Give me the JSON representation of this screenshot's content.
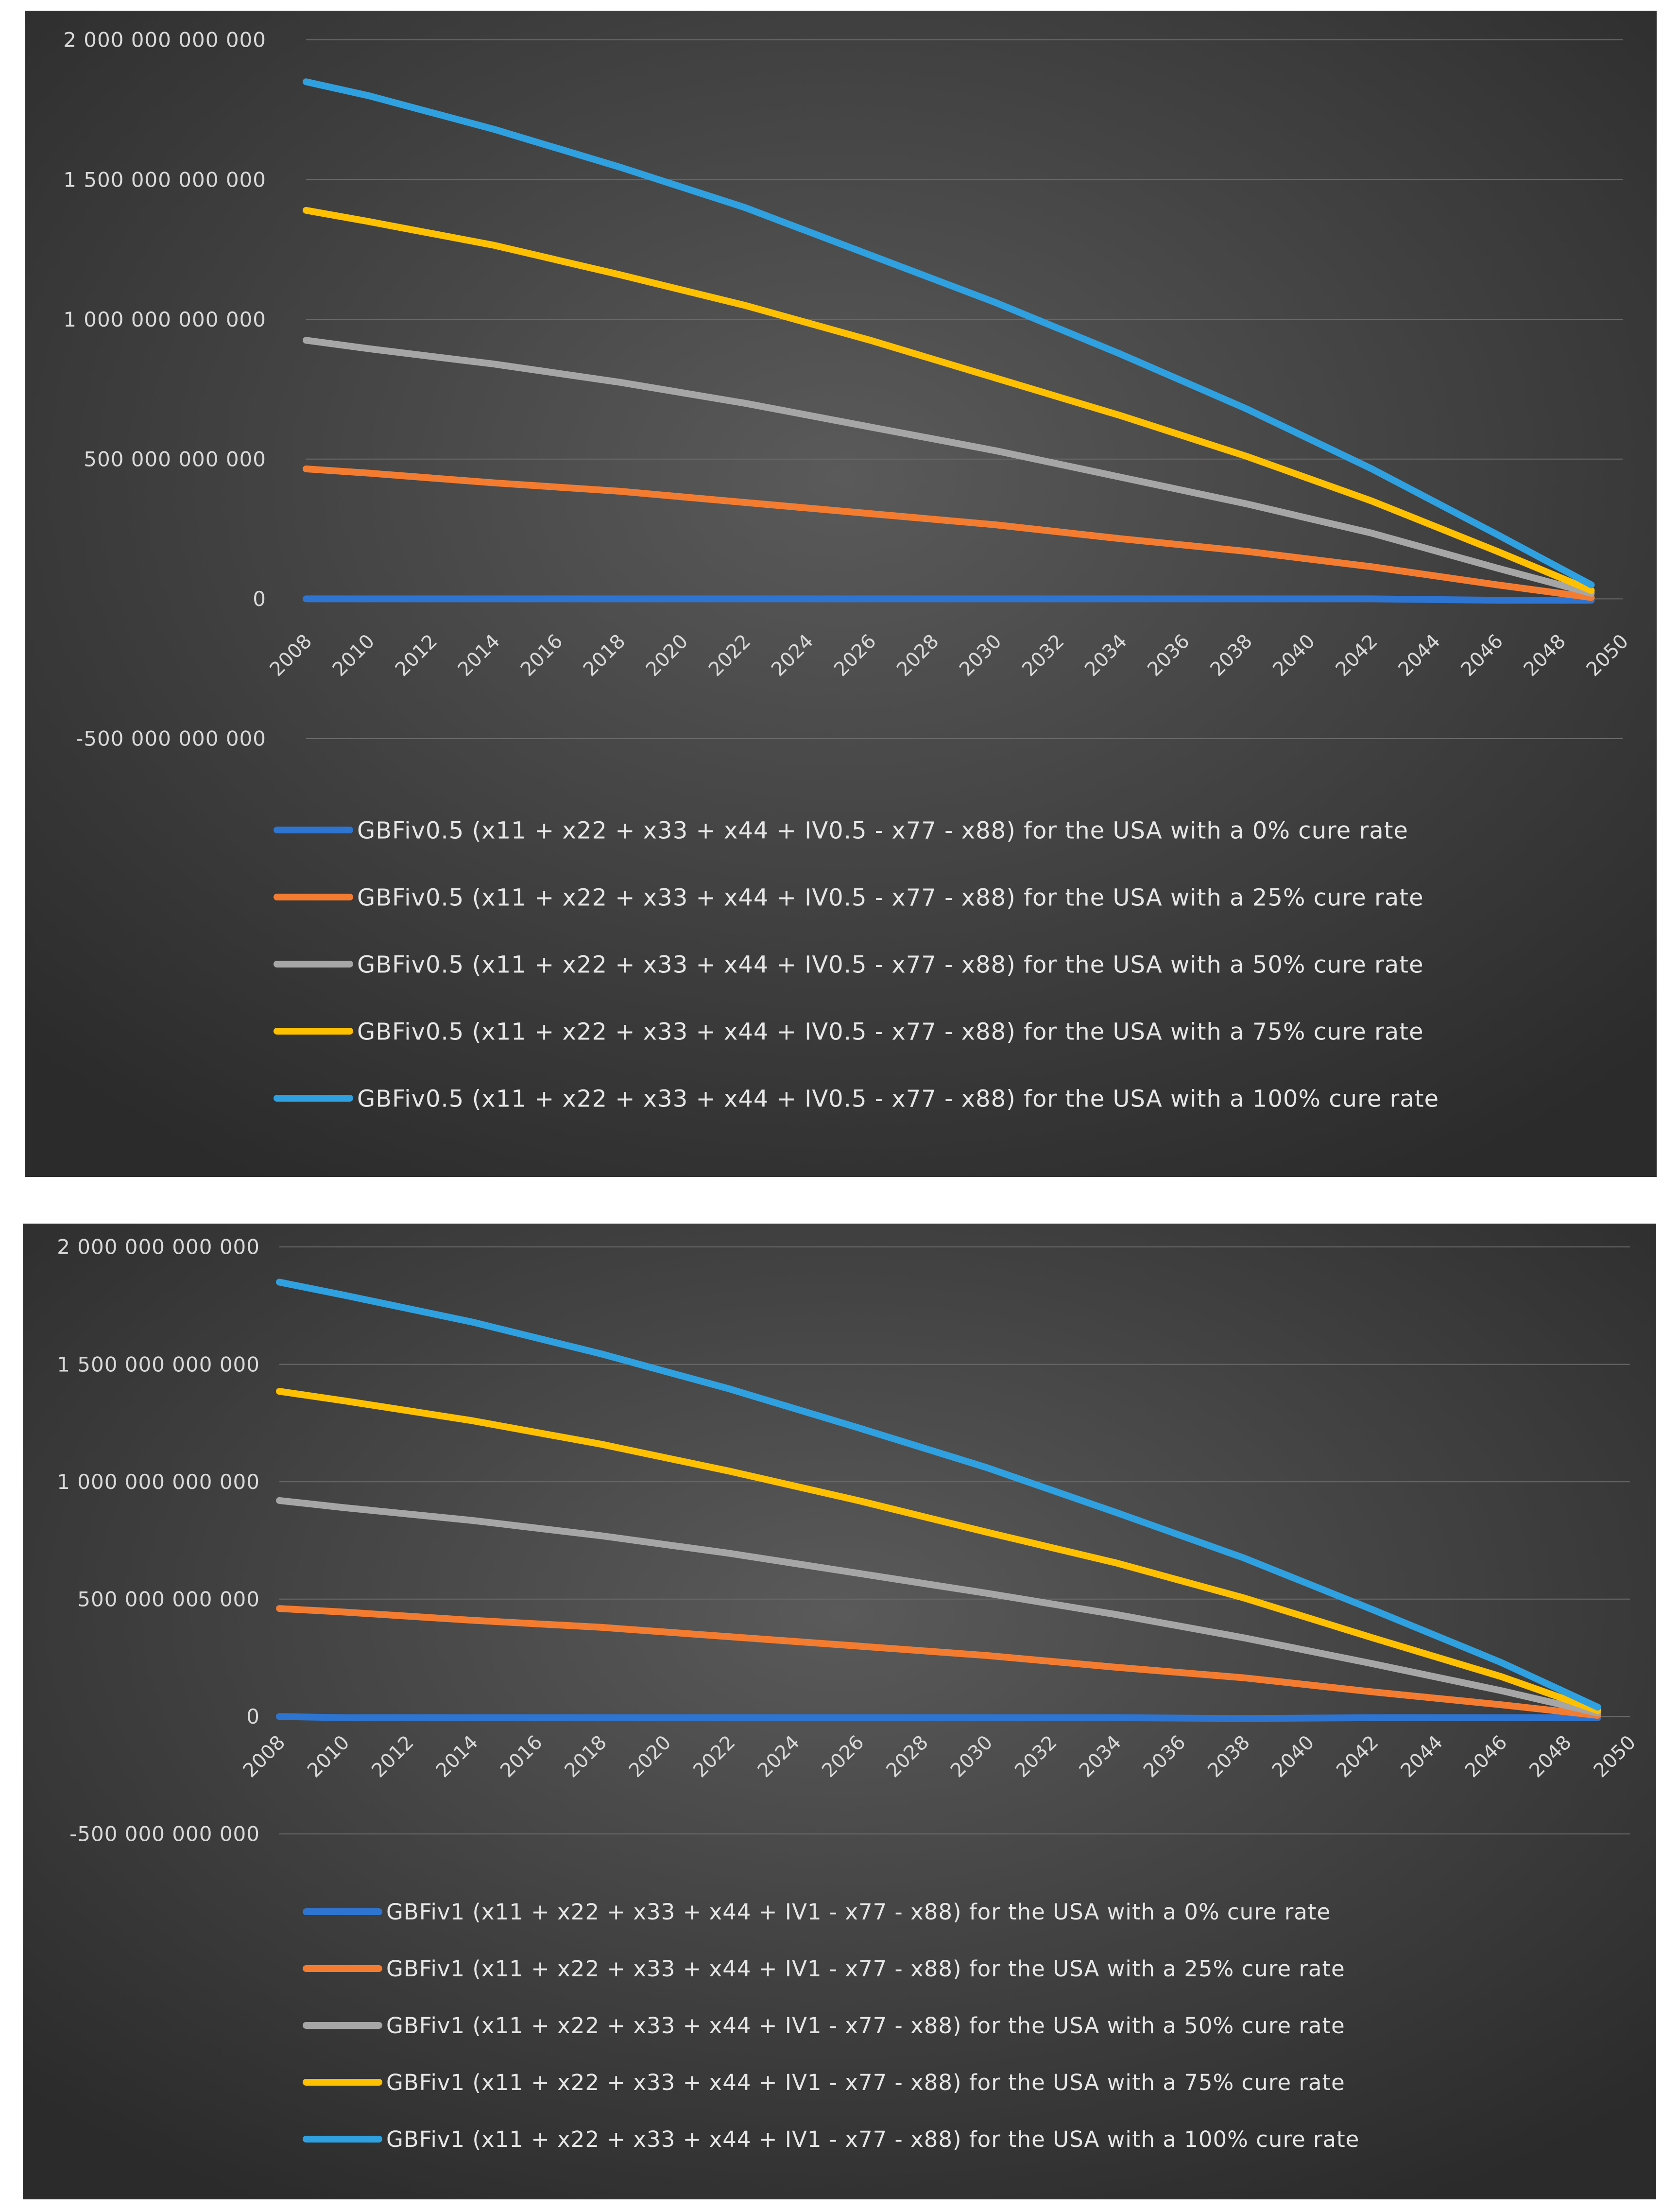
{
  "colors": {
    "bg_center": "#5a5a5a",
    "bg_edge": "#2b2b2b",
    "grid": "#6a6a6a",
    "axis_text": "#d9d9d9",
    "legend_text": "#e6e6e6",
    "series": [
      "#2e75d1",
      "#f47c30",
      "#a6a6a6",
      "#ffc000",
      "#2fa0e0"
    ]
  },
  "chart_data": [
    {
      "type": "line",
      "title": "",
      "xlabel": "",
      "ylabel": "",
      "ylim": [
        -500000000000,
        2000000000000
      ],
      "xlim": [
        2008,
        2050
      ],
      "grid": true,
      "legend_position": "bottom",
      "x_ticks": [
        "2008",
        "2010",
        "2012",
        "2014",
        "2016",
        "2018",
        "2020",
        "2022",
        "2024",
        "2026",
        "2028",
        "2030",
        "2032",
        "2034",
        "2036",
        "2038",
        "2040",
        "2042",
        "2044",
        "2046",
        "2048",
        "2050"
      ],
      "y_ticks": [
        {
          "value": 2000000000000,
          "label": "2 000 000 000 000"
        },
        {
          "value": 1500000000000,
          "label": "1 500 000 000 000"
        },
        {
          "value": 1000000000000,
          "label": "1 000 000 000 000"
        },
        {
          "value": 500000000000,
          "label": "500 000 000 000"
        },
        {
          "value": 0,
          "label": "0"
        },
        {
          "value": -500000000000,
          "label": "-500 000 000 000"
        }
      ],
      "x": [
        2008,
        2010,
        2014,
        2018,
        2022,
        2026,
        2030,
        2034,
        2038,
        2042,
        2046,
        2049
      ],
      "series": [
        {
          "name": "GBFiv0.5 (x11 + x22 + x33 + x44 + IV0.5 - x77 - x88) for the USA with a 0% cure rate",
          "values": [
            0,
            0,
            0,
            0,
            0,
            0,
            0,
            0,
            0,
            0,
            -5000000000,
            -5000000000
          ]
        },
        {
          "name": "GBFiv0.5 (x11 + x22 + x33 + x44 + IV0.5 - x77 - x88) for the USA with a 25% cure rate",
          "values": [
            465000000000,
            450000000000,
            415000000000,
            385000000000,
            345000000000,
            305000000000,
            265000000000,
            215000000000,
            170000000000,
            115000000000,
            50000000000,
            5000000000
          ]
        },
        {
          "name": "GBFiv0.5 (x11 + x22 + x33 + x44 + IV0.5 - x77 - x88) for the USA with a 50% cure rate",
          "values": [
            925000000000,
            895000000000,
            840000000000,
            775000000000,
            700000000000,
            615000000000,
            530000000000,
            435000000000,
            340000000000,
            235000000000,
            110000000000,
            20000000000
          ]
        },
        {
          "name": "GBFiv0.5 (x11 + x22 + x33 + x44 + IV0.5 - x77 - x88) for the USA with a 75% cure rate",
          "values": [
            1390000000000,
            1350000000000,
            1265000000000,
            1160000000000,
            1050000000000,
            925000000000,
            790000000000,
            655000000000,
            510000000000,
            350000000000,
            170000000000,
            30000000000
          ]
        },
        {
          "name": "GBFiv0.5 (x11 + x22 + x33 + x44 + IV0.5 - x77 - x88) for the USA with a 100% cure rate",
          "values": [
            1850000000000,
            1800000000000,
            1680000000000,
            1545000000000,
            1400000000000,
            1230000000000,
            1060000000000,
            875000000000,
            680000000000,
            465000000000,
            230000000000,
            50000000000
          ]
        }
      ]
    },
    {
      "type": "line",
      "title": "",
      "xlabel": "",
      "ylabel": "",
      "ylim": [
        -500000000000,
        2000000000000
      ],
      "xlim": [
        2008,
        2050
      ],
      "grid": true,
      "legend_position": "bottom",
      "x_ticks": [
        "2008",
        "2010",
        "2012",
        "2014",
        "2016",
        "2018",
        "2020",
        "2022",
        "2024",
        "2026",
        "2028",
        "2030",
        "2032",
        "2034",
        "2036",
        "2038",
        "2040",
        "2042",
        "2044",
        "2046",
        "2048",
        "2050"
      ],
      "y_ticks": [
        {
          "value": 2000000000000,
          "label": "2 000 000 000 000"
        },
        {
          "value": 1500000000000,
          "label": "1 500 000 000 000"
        },
        {
          "value": 1000000000000,
          "label": "1 000 000 000 000"
        },
        {
          "value": 500000000000,
          "label": "500 000 000 000"
        },
        {
          "value": 0,
          "label": "0"
        },
        {
          "value": -500000000000,
          "label": "-500 000 000 000"
        }
      ],
      "x": [
        2008,
        2010,
        2014,
        2018,
        2022,
        2026,
        2030,
        2034,
        2038,
        2042,
        2046,
        2049
      ],
      "series": [
        {
          "name": "GBFiv1 (x11 + x22 + x33 + x44 + IV1 - x77 - x88) for the USA with a 0% cure rate",
          "values": [
            0,
            -5000000000,
            -5000000000,
            -5000000000,
            -5000000000,
            -5000000000,
            -5000000000,
            -5000000000,
            -8000000000,
            -5000000000,
            -5000000000,
            -5000000000
          ]
        },
        {
          "name": "GBFiv1 (x11 + x22 + x33 + x44 + IV1 - x77 - x88) for the USA with a 25% cure rate",
          "values": [
            460000000000,
            445000000000,
            410000000000,
            380000000000,
            340000000000,
            300000000000,
            260000000000,
            210000000000,
            165000000000,
            105000000000,
            50000000000,
            5000000000
          ]
        },
        {
          "name": "GBFiv1 (x11 + x22 + x33 + x44 + IV1 - x77 - x88) for the USA with a 50% cure rate",
          "values": [
            920000000000,
            890000000000,
            835000000000,
            770000000000,
            695000000000,
            610000000000,
            525000000000,
            435000000000,
            335000000000,
            225000000000,
            110000000000,
            15000000000
          ]
        },
        {
          "name": "GBFiv1 (x11 + x22 + x33 + x44 + IV1 - x77 - x88) for the USA with a 75% cure rate",
          "values": [
            1385000000000,
            1345000000000,
            1260000000000,
            1160000000000,
            1045000000000,
            920000000000,
            785000000000,
            655000000000,
            505000000000,
            335000000000,
            170000000000,
            25000000000
          ]
        },
        {
          "name": "GBFiv1 (x11 + x22 + x33 + x44 + IV1 - x77 - x88) for the USA with a 100% cure rate",
          "values": [
            1850000000000,
            1795000000000,
            1680000000000,
            1545000000000,
            1395000000000,
            1230000000000,
            1060000000000,
            870000000000,
            675000000000,
            455000000000,
            230000000000,
            40000000000
          ]
        }
      ]
    }
  ]
}
